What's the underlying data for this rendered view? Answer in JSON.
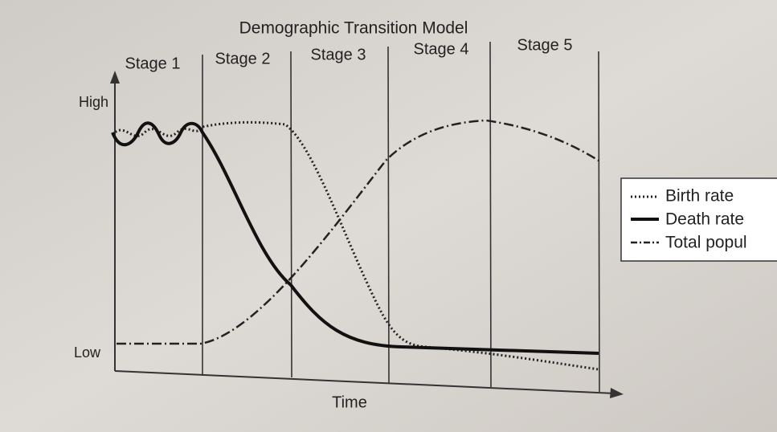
{
  "title": "Demographic Transition Model",
  "stages": [
    "Stage 1",
    "Stage 2",
    "Stage 3",
    "Stage 4",
    "Stage 5"
  ],
  "y_axis": {
    "high": "High",
    "low": "Low"
  },
  "x_axis": {
    "label": "Time"
  },
  "legend": [
    "Birth rate",
    "Death rate",
    "Total popul"
  ]
}
